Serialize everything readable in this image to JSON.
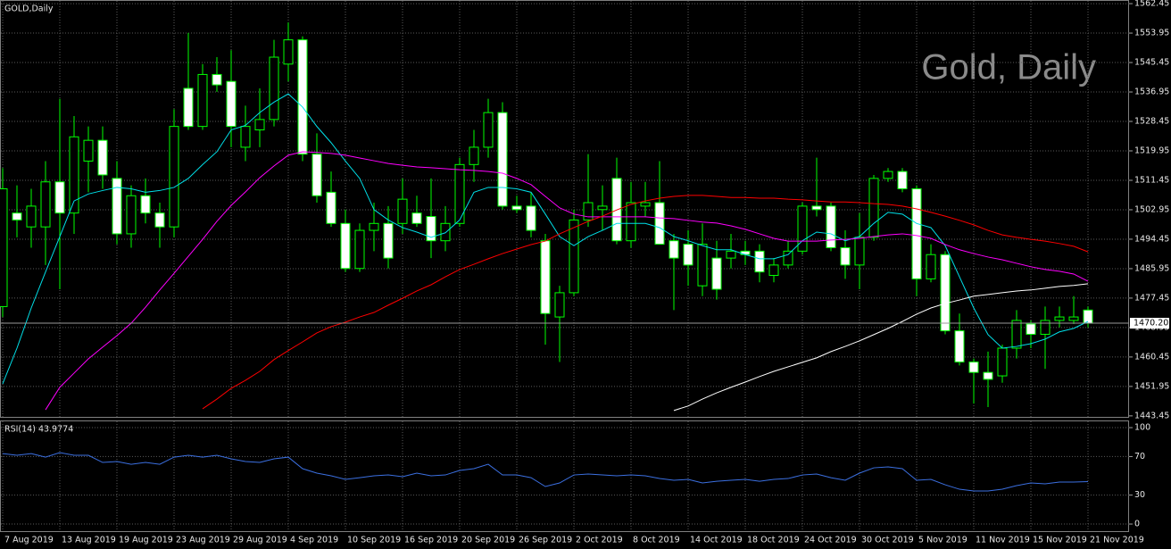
{
  "chart_data": [
    {
      "type": "candlestick",
      "title": "GOLD,Daily",
      "watermark": "Gold, Daily",
      "categories": [
        "7 Aug 2019",
        null,
        null,
        null,
        "13 Aug 2019",
        null,
        null,
        null,
        "19 Aug 2019",
        null,
        null,
        null,
        "23 Aug 2019",
        null,
        null,
        null,
        "29 Aug 2019",
        null,
        null,
        null,
        "4 Sep 2019",
        null,
        null,
        null,
        "10 Sep 2019",
        null,
        null,
        null,
        "16 Sep 2019",
        null,
        null,
        null,
        "20 Sep 2019",
        null,
        null,
        null,
        "26 Sep 2019",
        null,
        null,
        null,
        "2 Oct 2019",
        null,
        null,
        null,
        "8 Oct 2019",
        null,
        null,
        null,
        "14 Oct 2019",
        null,
        null,
        null,
        "18 Oct 2019",
        null,
        null,
        null,
        "24 Oct 2019",
        null,
        null,
        null,
        "30 Oct 2019",
        null,
        null,
        null,
        "5 Nov 2019",
        null,
        null,
        null,
        "11 Nov 2019",
        null,
        null,
        null,
        "15 Nov 2019",
        null,
        null,
        null,
        "21 Nov 2019"
      ],
      "open": [
        1475,
        1502,
        1498,
        1498,
        1511,
        1502,
        1517,
        1523,
        1512,
        1496,
        1507,
        1502,
        1498,
        1538,
        1527,
        1542,
        1540,
        1521,
        1526,
        1529,
        1545,
        1552,
        1519,
        1508,
        1499,
        1486,
        1497,
        1499,
        1499,
        1502,
        1501,
        1494,
        1499,
        1516,
        1521,
        1531,
        1504,
        1504,
        1494,
        1472,
        1479,
        1500,
        1503,
        1512,
        1494,
        1504,
        1505,
        1494,
        1493,
        1481,
        1489,
        1489,
        1491,
        1491,
        1484,
        1487,
        1491,
        1504,
        1504,
        1492,
        1487,
        1495,
        1512,
        1514,
        1509,
        1483,
        1490,
        1468,
        1459,
        1456,
        1455,
        1463,
        1470,
        1467,
        1471,
        1471,
        1474
      ],
      "high": [
        1515,
        1510,
        1509,
        1517,
        1535,
        1530,
        1527,
        1527,
        1517,
        1510,
        1512,
        1505,
        1532,
        1554,
        1545,
        1547,
        1549,
        1533,
        1538,
        1552,
        1557,
        1553,
        1525,
        1514,
        1503,
        1499,
        1505,
        1504,
        1512,
        1507,
        1512,
        1504,
        1518,
        1526,
        1535,
        1534,
        1507,
        1508,
        1496,
        1481,
        1503,
        1519,
        1510,
        1518,
        1511,
        1511,
        1517,
        1496,
        1497,
        1499,
        1494,
        1496,
        1494,
        1493,
        1489,
        1494,
        1505,
        1518,
        1505,
        1497,
        1502,
        1513,
        1515,
        1515,
        1510,
        1493,
        1491,
        1473,
        1460,
        1462,
        1464,
        1474,
        1471,
        1475,
        1475,
        1478,
        1475
      ],
      "low": [
        1472,
        1495,
        1492,
        1487,
        1480,
        1496,
        1508,
        1509,
        1493,
        1492,
        1499,
        1492,
        1495,
        1526,
        1526,
        1537,
        1521,
        1517,
        1521,
        1527,
        1540,
        1517,
        1505,
        1498,
        1485,
        1485,
        1491,
        1486,
        1496,
        1498,
        1489,
        1491,
        1498,
        1511,
        1518,
        1503,
        1502,
        1495,
        1464,
        1459,
        1478,
        1498,
        1497,
        1493,
        1492,
        1501,
        1493,
        1474,
        1481,
        1478,
        1477,
        1486,
        1487,
        1482,
        1482,
        1486,
        1490,
        1501,
        1491,
        1483,
        1480,
        1494,
        1511,
        1508,
        1478,
        1482,
        1467,
        1458,
        1447,
        1446,
        1453,
        1460,
        1463,
        1457,
        1469,
        1470,
        1469
      ],
      "close": [
        1509,
        1500,
        1504,
        1511,
        1502,
        1524,
        1523,
        1513,
        1496,
        1507,
        1502,
        1498,
        1527,
        1527,
        1542,
        1539,
        1527,
        1527,
        1529,
        1547,
        1552,
        1519,
        1507,
        1499,
        1486,
        1497,
        1499,
        1489,
        1506,
        1499,
        1494,
        1499,
        1516,
        1521,
        1531,
        1504,
        1503,
        1497,
        1473,
        1479,
        1500,
        1505,
        1504,
        1494,
        1505,
        1505,
        1493,
        1489,
        1487,
        1493,
        1480,
        1491,
        1490,
        1485,
        1487,
        1491,
        1504,
        1503,
        1492,
        1487,
        1495,
        1512,
        1514,
        1509,
        1483,
        1490,
        1468,
        1459,
        1456,
        1454,
        1463,
        1471,
        1467,
        1471,
        1472,
        1472,
        1470.2
      ],
      "up_color": "#000000",
      "down_color": "#ffffff",
      "wick_color": "#00ff00",
      "series": [
        {
          "color": "#00e0e8",
          "values": [
            1452.7,
            1463,
            1474.6,
            1485,
            1495.2,
            1505.5,
            1507.5,
            1508.5,
            1509.4,
            1509,
            1508,
            1508.5,
            1509.4,
            1512,
            1516,
            1519.7,
            1526,
            1527.3,
            1531,
            1534,
            1536.4,
            1532.6,
            1527,
            1522.3,
            1517,
            1512,
            1503,
            1500,
            1497.8,
            1496.5,
            1495,
            1496.3,
            1500,
            1508,
            1509.4,
            1509.4,
            1509,
            1508,
            1501.7,
            1495.2,
            1492.6,
            1495.2,
            1497,
            1499,
            1499,
            1499,
            1497.8,
            1495.2,
            1494,
            1492.6,
            1491.4,
            1491.4,
            1490,
            1488.8,
            1488.8,
            1490,
            1494,
            1496.5,
            1496,
            1494,
            1495.2,
            1499,
            1502.2,
            1501.7,
            1499,
            1497.8,
            1492.6,
            1483.6,
            1474.6,
            1466.9,
            1463,
            1463.5,
            1464.3,
            1465.6,
            1467.7,
            1468.7,
            1470.7
          ]
        },
        {
          "color": "#ff00ff",
          "values": [
            null,
            null,
            null,
            1445.2,
            1451.7,
            1455.8,
            1459.9,
            1463.3,
            1466.6,
            1470.2,
            1474.8,
            1479.8,
            1484.6,
            1489.5,
            1494.4,
            1499.6,
            1504.2,
            1508.1,
            1512.2,
            1515.6,
            1518.7,
            1519.7,
            1519.5,
            1519.2,
            1518.7,
            1517.9,
            1517.1,
            1516.3,
            1515.8,
            1515.3,
            1515.1,
            1514.8,
            1514.5,
            1514.3,
            1514,
            1513.5,
            1512,
            1510.2,
            1506.8,
            1503.5,
            1501.7,
            1500.9,
            1500.9,
            1500.9,
            1500.9,
            1500.9,
            1500.6,
            1500.4,
            1499.9,
            1499.4,
            1499.1,
            1498.3,
            1497.3,
            1496,
            1494.7,
            1493.9,
            1493.9,
            1493.9,
            1494.2,
            1494.4,
            1494.7,
            1495.2,
            1495.7,
            1496,
            1495.5,
            1494.7,
            1492.9,
            1491.4,
            1490.3,
            1489.3,
            1488.5,
            1487.5,
            1486.5,
            1485.7,
            1485.2,
            1484.4,
            1482.3
          ]
        },
        {
          "color": "#ff0000",
          "values": [
            null,
            null,
            null,
            null,
            null,
            null,
            null,
            null,
            null,
            null,
            null,
            null,
            null,
            null,
            1445.5,
            1448.3,
            1451.4,
            1453.7,
            1456.3,
            1459.7,
            1462.3,
            1464.8,
            1467.4,
            1469.2,
            1470.5,
            1472,
            1473.3,
            1475.4,
            1477.4,
            1479.5,
            1481.3,
            1483.6,
            1485.7,
            1487.2,
            1488.8,
            1490.3,
            1491.6,
            1492.9,
            1493.9,
            1496,
            1497.8,
            1499.6,
            1501.1,
            1502.9,
            1504.5,
            1505.5,
            1506.3,
            1506.8,
            1507.1,
            1507.1,
            1506.8,
            1506.5,
            1506.5,
            1506.3,
            1506.3,
            1506,
            1505.8,
            1505.5,
            1505.2,
            1505.2,
            1505,
            1504.7,
            1504.5,
            1504,
            1503.2,
            1502.2,
            1501.1,
            1499.9,
            1498.6,
            1497,
            1495.7,
            1495,
            1494.4,
            1493.9,
            1493.2,
            1492.4,
            1490.8
          ]
        },
        {
          "color": "#ffffff",
          "values": [
            null,
            null,
            null,
            null,
            null,
            null,
            null,
            null,
            null,
            null,
            null,
            null,
            null,
            null,
            null,
            null,
            null,
            null,
            null,
            null,
            null,
            null,
            null,
            null,
            null,
            null,
            null,
            null,
            null,
            null,
            null,
            null,
            null,
            null,
            null,
            null,
            null,
            null,
            null,
            null,
            null,
            null,
            null,
            null,
            null,
            null,
            null,
            1445,
            1446.3,
            1448.3,
            1450.1,
            1451.7,
            1453.2,
            1454.8,
            1456.3,
            1457.6,
            1458.9,
            1460.2,
            1462,
            1463.5,
            1465.1,
            1466.9,
            1468.7,
            1470.7,
            1472.8,
            1474.6,
            1475.9,
            1476.9,
            1478,
            1478.5,
            1479,
            1479.5,
            1479.8,
            1480.3,
            1480.8,
            1481.1,
            1481.6
          ]
        }
      ],
      "ylim": [
        1442.9,
        1563.5
      ],
      "yticks": [
        1562.45,
        1553.95,
        1545.45,
        1536.95,
        1528.45,
        1519.95,
        1511.45,
        1502.95,
        1494.45,
        1485.95,
        1477.45,
        1468.95,
        1460.45,
        1451.95,
        1443.45
      ],
      "grid": true,
      "last_price": {
        "value": 1470.2,
        "label": "1470.20"
      }
    },
    {
      "type": "line",
      "title": "RSI(14) 43.9774",
      "series": [
        {
          "color": "#3b6fe0",
          "values": [
            73.1,
            71.3,
            73.1,
            69.4,
            74.1,
            71.3,
            71.3,
            63.9,
            64.8,
            62.0,
            63.9,
            62.0,
            69.4,
            71.3,
            69.4,
            71.3,
            67.6,
            64.8,
            63.9,
            67.6,
            69.4,
            57.4,
            52.8,
            50.0,
            46.3,
            48.1,
            50.0,
            50.9,
            49.1,
            52.8,
            50.0,
            50.9,
            55.6,
            57.4,
            62.0,
            50.9,
            50.9,
            48.1,
            38.9,
            42.6,
            50.9,
            51.9,
            50.9,
            50.0,
            50.9,
            50.0,
            47.2,
            45.4,
            46.3,
            42.6,
            44.4,
            45.4,
            46.3,
            44.4,
            46.3,
            47.2,
            50.9,
            51.9,
            48.1,
            45.4,
            52.8,
            58.3,
            59.3,
            57.4,
            45.4,
            46.3,
            40.7,
            36.1,
            34.3,
            34.3,
            36.1,
            39.8,
            42.6,
            41.7,
            43.5,
            43.5,
            43.9774
          ]
        }
      ],
      "ylim": [
        -8.3,
        106.5
      ],
      "yticks": [
        100,
        70,
        30,
        0
      ],
      "grid": true
    }
  ]
}
